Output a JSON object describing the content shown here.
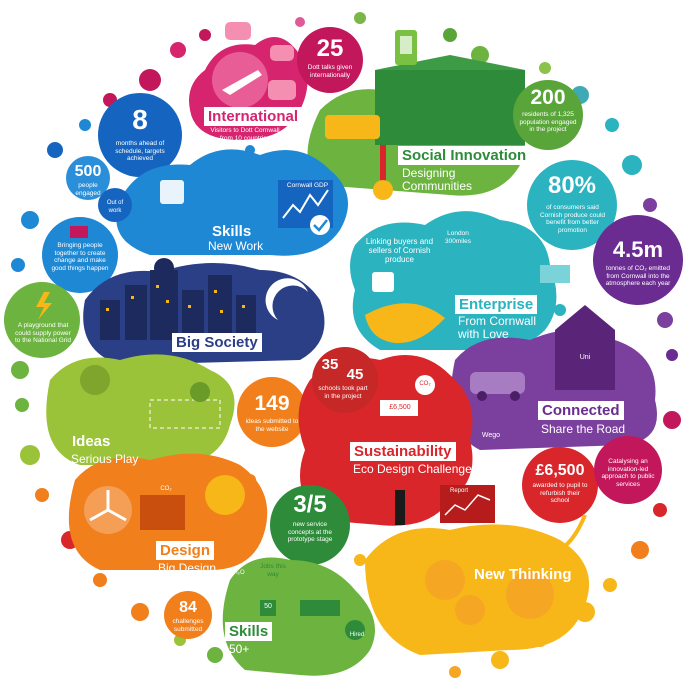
{
  "colors": {
    "pink": "#d6246e",
    "magenta": "#c2185b",
    "purple": "#6a2c91",
    "violet": "#7b3f9e",
    "blue": "#1e88d4",
    "navy": "#2b3f86",
    "teal": "#2bb3c0",
    "green": "#6cb33f",
    "darkgreen": "#2e8b3a",
    "lime": "#9bc33a",
    "red": "#d8262b",
    "orange": "#f07f1c",
    "yellow": "#f7b718"
  },
  "segments": {
    "international": {
      "title": "International",
      "subtitle": "Visitors to Dott Cornwall from 10 countries"
    },
    "social": {
      "title": "Social Innovation",
      "subtitle": "Designing Communities"
    },
    "skills_new_work": {
      "title": "Skills",
      "subtitle": "New Work",
      "gdp": "Cornwall GDP",
      "out_of_work": "Out of work"
    },
    "big_society": {
      "title": "Big Society"
    },
    "enterprise": {
      "title": "Enterprise",
      "subtitle": "From Cornwall with Love",
      "linking": "Linking buyers and sellers of Cornish produce",
      "london": "London 300miles"
    },
    "connected": {
      "title": "Connected",
      "subtitle": "Share the Road",
      "uni": "Uni",
      "wego": "Wego"
    },
    "ideas": {
      "title": "Ideas",
      "subtitle": "Serious Play"
    },
    "sustainability": {
      "title": "Sustainability",
      "subtitle": "Eco Design Challenge",
      "price": "£6,500",
      "co2": "CO₂",
      "report": "Report"
    },
    "design": {
      "title": "Design",
      "subtitle": "Big Design Challenge",
      "co2": "CO₂",
      "h2o": "H₂O"
    },
    "skills_50": {
      "title": "Skills",
      "subtitle": "50+",
      "jobs": "Jobs this way",
      "fifty": "50",
      "hired": "Hired"
    },
    "new_thinking": {
      "title": "New Thinking"
    }
  },
  "stats": {
    "s25": {
      "value": "25",
      "text": "Dott talks given internationally"
    },
    "s8": {
      "value": "8",
      "text": "months ahead of schedule, targets achieved"
    },
    "s200": {
      "value": "200",
      "text": "residents of 1,325 population engaged in the project"
    },
    "s500": {
      "value": "500",
      "text": "people engaged"
    },
    "s80": {
      "value": "80%",
      "text": "of consumers said Cornish produce could benefit from better promotion"
    },
    "bringing": {
      "text": "Bringing people together to create change and make good things happen"
    },
    "s45m": {
      "value": "4.5m",
      "text": "tonnes of CO₂ emitted from Cornwall into the atmosphere each year"
    },
    "playground": {
      "text": "A playground that could supply power to the National Grid"
    },
    "s35": {
      "value": "35",
      "value2": "45",
      "text": "schools took part in the project"
    },
    "s149": {
      "value": "149",
      "text": "ideas submitted to the website"
    },
    "s6500": {
      "value": "£6,500",
      "text": "awarded to pupil to refurbish their school"
    },
    "catalysing": {
      "text": "Catalysing an innovation-led approach to public services"
    },
    "s35b": {
      "value": "3/5",
      "text": "new service concepts at the prototype stage"
    },
    "s84": {
      "value": "84",
      "text": "challenges submitted"
    }
  }
}
